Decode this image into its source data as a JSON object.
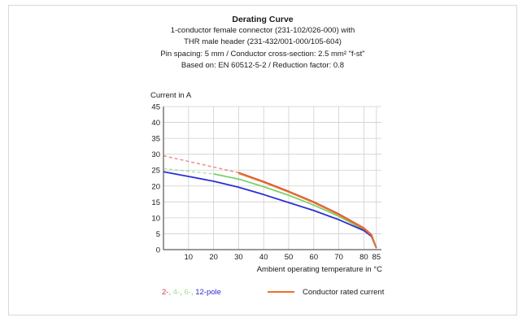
{
  "chart_data": {
    "type": "line",
    "title": "Derating Curve",
    "subtitle_lines": [
      "1-conductor female connector (231-102/026-000) with",
      "THR male header (231-432/001-000/105-604)",
      "Pin spacing: 5 mm / Conductor cross-section: 2.5 mm² \"f-st\"",
      "Based on: EN 60512-5-2 / Reduction factor: 0.8"
    ],
    "ylabel": "Current in A",
    "xlabel": "Ambient operating temperature in °C",
    "xlim": [
      0,
      87
    ],
    "ylim": [
      0,
      45
    ],
    "x_ticks": [
      10,
      20,
      30,
      40,
      50,
      60,
      70,
      80,
      85
    ],
    "y_ticks": [
      0,
      5,
      10,
      15,
      20,
      25,
      30,
      35,
      40,
      45
    ],
    "grid": true,
    "series": [
      {
        "id": "red",
        "color": "#d93a3a",
        "x": [
          30,
          40,
          50,
          60,
          70,
          80,
          83,
          85
        ],
        "y": [
          24.2,
          21.4,
          18.3,
          15.0,
          11.2,
          6.8,
          4.7,
          0.5
        ],
        "extrapolated": {
          "x": [
            0,
            30
          ],
          "y": [
            29.5,
            24.2
          ]
        }
      },
      {
        "id": "green",
        "color": "#79d26a",
        "x": [
          20,
          30,
          40,
          50,
          60,
          70,
          80,
          83,
          85
        ],
        "y": [
          23.8,
          22.2,
          19.8,
          17.1,
          14.0,
          10.5,
          6.3,
          4.4,
          0.5
        ],
        "extrapolated": {
          "x": [
            0,
            20
          ],
          "y": [
            25.5,
            23.8
          ]
        }
      },
      {
        "id": "blue",
        "color": "#2b2fd4",
        "x": [
          0,
          10,
          20,
          30,
          40,
          50,
          60,
          70,
          80,
          83,
          85
        ],
        "y": [
          24.5,
          23.0,
          21.5,
          19.6,
          17.3,
          14.8,
          12.3,
          9.4,
          6.0,
          4.2,
          0.5
        ]
      },
      {
        "id": "orange",
        "color": "#e8732a",
        "x": [
          30,
          40,
          50,
          60,
          70,
          80,
          83,
          85
        ],
        "y": [
          24.0,
          21.2,
          18.1,
          14.8,
          11.0,
          6.6,
          4.5,
          0.5
        ]
      }
    ],
    "legend": {
      "placement": "bottom",
      "pole_items": [
        {
          "text": "2-",
          "color": "#d93a3a"
        },
        {
          "text": ", ",
          "color": "#999999"
        },
        {
          "text": "4-",
          "color": "#9be08f"
        },
        {
          "text": ", ",
          "color": "#999999"
        },
        {
          "text": "6-",
          "color": "#9be08f"
        },
        {
          "text": ", ",
          "color": "#999999"
        },
        {
          "text": "12-",
          "color": "#2b2fd4"
        },
        {
          "text": "pole",
          "color": "#2b2fd4"
        }
      ],
      "rated_label": "Conductor rated current",
      "rated_color": "#e8732a"
    }
  }
}
